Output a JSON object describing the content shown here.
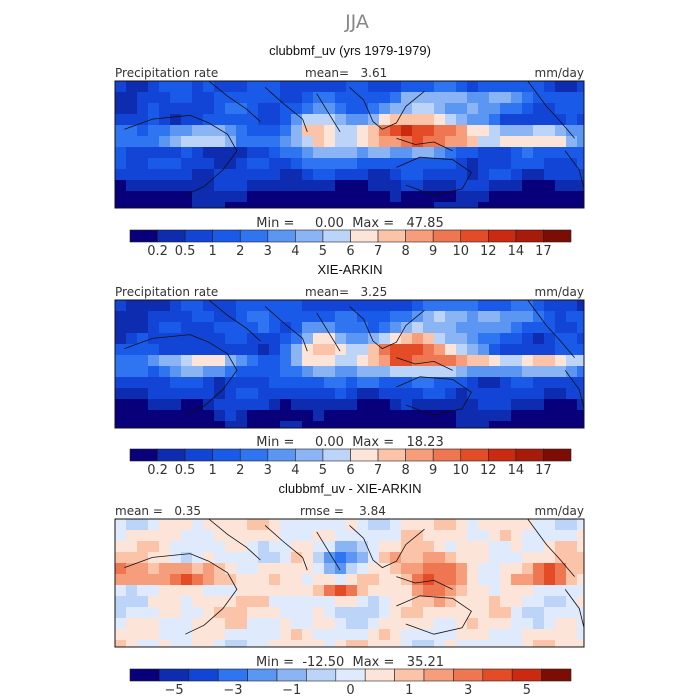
{
  "figure": {
    "season": "JJA",
    "colors": {
      "text": "#222222",
      "season_text": "#888888",
      "land_outline": "#111111"
    }
  },
  "chart_data": [
    {
      "type": "heatmap",
      "title": "clubbmf_uv (yrs 1979-1979)",
      "left_label": "Precipitation rate",
      "center_label": "mean=   3.61",
      "units": "mm/day",
      "mean": 3.61,
      "min": 0.0,
      "max": 47.85,
      "minmax_text": "Min =     0.00  Max =   47.85",
      "colorbar": {
        "ticks": [
          "0.2",
          "0.5",
          "1",
          "2",
          "3",
          "4",
          "5",
          "6",
          "7",
          "8",
          "9",
          "10",
          "12",
          "14",
          "17"
        ],
        "colors": [
          "#08007a",
          "#0d2cb0",
          "#1245d6",
          "#1a5ae8",
          "#2f74f0",
          "#5a96f2",
          "#8ab4f4",
          "#bcd4f7",
          "#fce5d8",
          "#fbc4a8",
          "#f69e7b",
          "#ee7650",
          "#e44c28",
          "#cc2a10",
          "#a81a0a",
          "#7d0c04"
        ],
        "positions": "edges"
      }
    },
    {
      "type": "heatmap",
      "title": "XIE-ARKIN",
      "left_label": "Precipitation rate",
      "center_label": "mean=   3.25",
      "units": "mm/day",
      "mean": 3.25,
      "min": 0.0,
      "max": 18.23,
      "minmax_text": "Min =     0.00  Max =   18.23",
      "colorbar": {
        "ticks": [
          "0.2",
          "0.5",
          "1",
          "2",
          "3",
          "4",
          "5",
          "6",
          "7",
          "8",
          "9",
          "10",
          "12",
          "14",
          "17"
        ],
        "colors": [
          "#08007a",
          "#0d2cb0",
          "#1245d6",
          "#1a5ae8",
          "#2f74f0",
          "#5a96f2",
          "#8ab4f4",
          "#bcd4f7",
          "#fce5d8",
          "#fbc4a8",
          "#f69e7b",
          "#ee7650",
          "#e44c28",
          "#cc2a10",
          "#a81a0a",
          "#7d0c04"
        ],
        "positions": "edges"
      }
    },
    {
      "type": "heatmap",
      "title": "clubbmf_uv - XIE-ARKIN",
      "left_label": "mean =   0.35",
      "center_label": "rmse =    3.84",
      "units": "mm/day",
      "mean": 0.35,
      "rmse": 3.84,
      "min": -12.5,
      "max": 35.21,
      "minmax_text": "Min =  -12.50  Max =   35.21",
      "colorbar": {
        "ticks": [
          "−5",
          "−3",
          "−1",
          "0",
          "1",
          "3",
          "5"
        ],
        "colors": [
          "#08007a",
          "#0d2cb0",
          "#1245d6",
          "#2f74f0",
          "#5a96f2",
          "#8ab4f4",
          "#bcd4f7",
          "#dfeafc",
          "#fce5d8",
          "#fbc4a8",
          "#f69e7b",
          "#ee7650",
          "#e44c28",
          "#cc2a10",
          "#7d0c04"
        ],
        "positions": "centers-odd"
      }
    }
  ]
}
